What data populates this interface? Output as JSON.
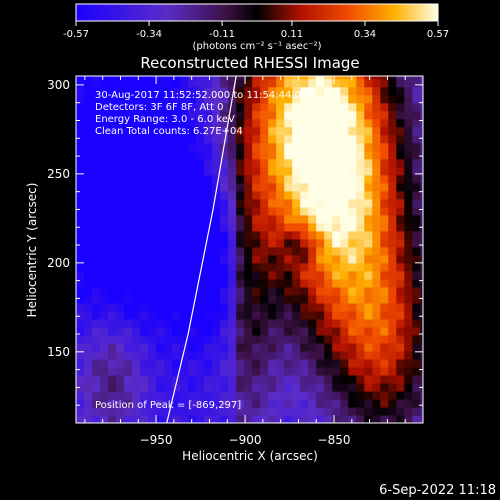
{
  "colorbar": {
    "tick_labels": [
      "-0.57",
      "-0.34",
      "-0.11",
      "0.11",
      "0.34",
      "0.57"
    ],
    "tick_values": [
      -0.57,
      -0.34,
      -0.11,
      0.11,
      0.34,
      0.57
    ],
    "unit_label": "(photons cm⁻² s⁻¹ asec⁻²)"
  },
  "chart_data": {
    "type": "heatmap",
    "title": "Reconstructed RHESSI Image",
    "xlabel": "Heliocentric X (arcsec)",
    "ylabel": "Heliocentric Y (arcsec)",
    "xlim": [
      -995,
      -800
    ],
    "ylim": [
      110,
      305
    ],
    "x_ticks": [
      -950,
      -900,
      -850
    ],
    "y_ticks": [
      150,
      200,
      250,
      300
    ],
    "value_range": [
      -0.57,
      0.57
    ],
    "peak": [
      -869,
      297
    ],
    "limb_curve_x": [
      -944,
      -932,
      -918,
      -905
    ],
    "limb_curve_y": [
      110,
      160,
      230,
      305
    ],
    "info_lines": [
      "30-Aug-2017 11:52:52.000 to 11:54:44.000",
      "Detectors: 3F 6F 8F, Att 0",
      "Energy Range: 3.0 - 6.0 keV",
      "Clean    Total counts: 6.27E+04"
    ],
    "peak_label": "Position of Peak = [-869,297]"
  },
  "footer": {
    "timestamp": "6-Sep-2022 11:18"
  }
}
